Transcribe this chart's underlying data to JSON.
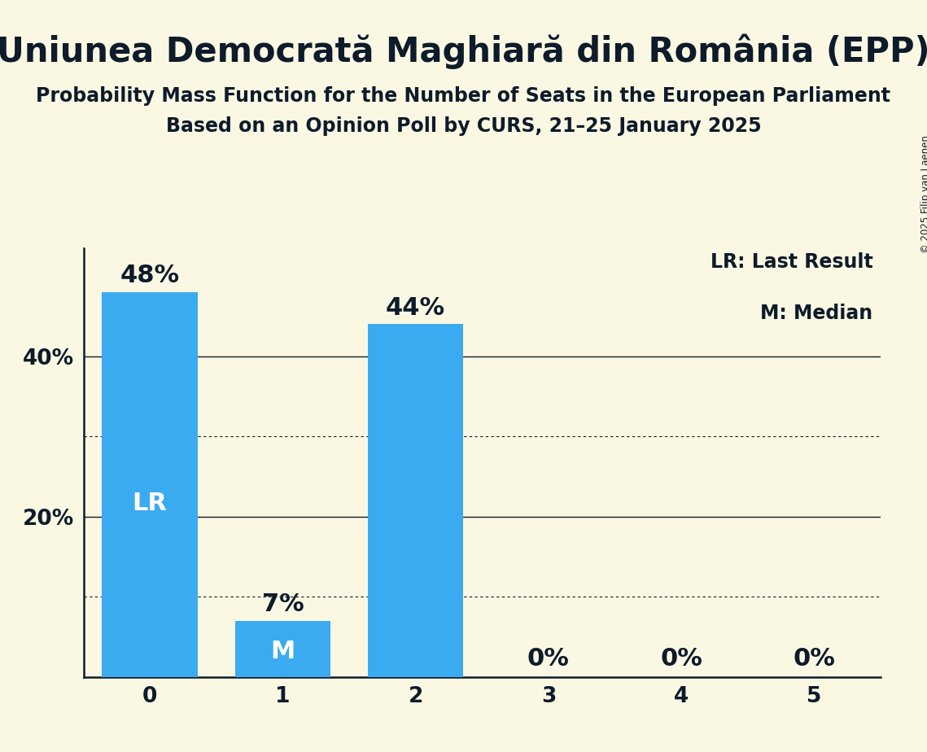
{
  "title": "Uniunea Democrată Maghiară din România (EPP)",
  "subtitle1": "Probability Mass Function for the Number of Seats in the European Parliament",
  "subtitle2": "Based on an Opinion Poll by CURS, 21–25 January 2025",
  "copyright": "© 2025 Filip van Laenen",
  "categories": [
    0,
    1,
    2,
    3,
    4,
    5
  ],
  "values": [
    0.48,
    0.07,
    0.44,
    0.0,
    0.0,
    0.0
  ],
  "bar_color": "#3AABF0",
  "background_color": "#FAF8E3",
  "text_color": "#0D1B2A",
  "label_LR": "LR",
  "label_M": "M",
  "LR_bar": 0,
  "M_bar": 1,
  "legend_LR": "LR: Last Result",
  "legend_M": "M: Median",
  "ylim": [
    0,
    0.535
  ],
  "yticks": [
    0.2,
    0.4
  ],
  "ytick_labels": [
    "20%",
    "40%"
  ],
  "dotted_lines": [
    0.1,
    0.3
  ],
  "solid_lines": [
    0.2,
    0.4
  ],
  "title_fontsize": 30,
  "subtitle_fontsize": 17,
  "bar_label_fontsize": 22,
  "axis_tick_fontsize": 19,
  "legend_fontsize": 17,
  "inbar_fontsize": 22,
  "bar_width": 0.72
}
